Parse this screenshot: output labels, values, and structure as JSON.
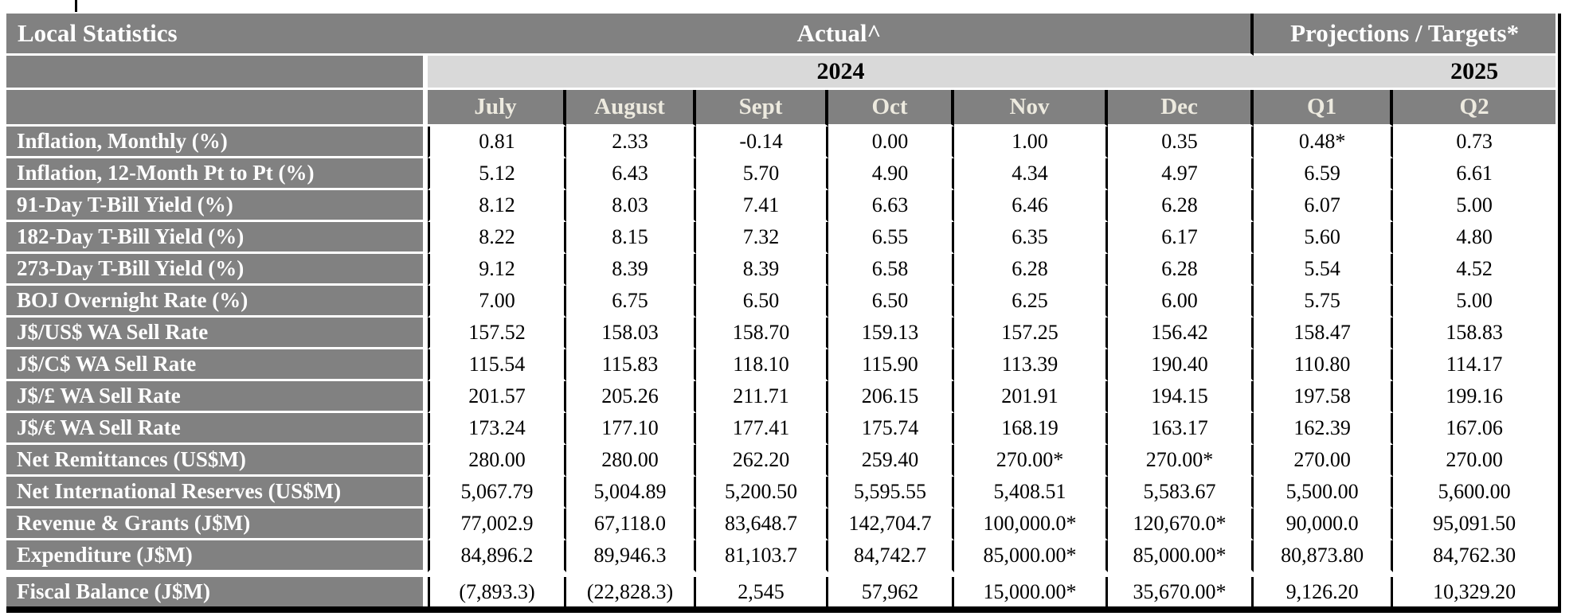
{
  "colors": {
    "gray": "#818181",
    "lightband": "#d9d9d9",
    "monthtext": "#edeadf",
    "headertext": "#ffffff",
    "datatext": "#000000",
    "border": "#000000",
    "bg": "#ffffff"
  },
  "table": {
    "title": "Local Statistics",
    "actual_header": "Actual^",
    "projections_header": "Projections / Targets*",
    "year_left": "2024",
    "year_right": "2025",
    "columns": [
      "July",
      "August",
      "Sept",
      "Oct",
      "Nov",
      "Dec",
      "Q1",
      "Q2"
    ],
    "rows": [
      {
        "label": "Inflation, Monthly (%)",
        "values": [
          "0.81",
          "2.33",
          "-0.14",
          "0.00",
          "1.00",
          "0.35",
          "0.48*",
          "0.73"
        ]
      },
      {
        "label": "Inflation, 12-Month Pt to Pt (%)",
        "values": [
          "5.12",
          "6.43",
          "5.70",
          "4.90",
          "4.34",
          "4.97",
          "6.59",
          "6.61"
        ]
      },
      {
        "label": "91-Day T-Bill Yield (%)",
        "values": [
          "8.12",
          "8.03",
          "7.41",
          "6.63",
          "6.46",
          "6.28",
          "6.07",
          "5.00"
        ]
      },
      {
        "label": "182-Day T-Bill Yield (%)",
        "values": [
          "8.22",
          "8.15",
          "7.32",
          "6.55",
          "6.35",
          "6.17",
          "5.60",
          "4.80"
        ]
      },
      {
        "label": "273-Day T-Bill Yield (%)",
        "values": [
          "9.12",
          "8.39",
          "8.39",
          "6.58",
          "6.28",
          "6.28",
          "5.54",
          "4.52"
        ]
      },
      {
        "label": "BOJ Overnight Rate (%)",
        "values": [
          "7.00",
          "6.75",
          "6.50",
          "6.50",
          "6.25",
          "6.00",
          "5.75",
          "5.00"
        ]
      },
      {
        "label": "J$/US$ WA Sell Rate",
        "values": [
          "157.52",
          "158.03",
          "158.70",
          "159.13",
          "157.25",
          "156.42",
          "158.47",
          "158.83"
        ]
      },
      {
        "label": "J$/C$ WA Sell Rate",
        "values": [
          "115.54",
          "115.83",
          "118.10",
          "115.90",
          "113.39",
          "190.40",
          "110.80",
          "114.17"
        ]
      },
      {
        "label": "J$/£ WA Sell Rate",
        "values": [
          "201.57",
          "205.26",
          "211.71",
          "206.15",
          "201.91",
          "194.15",
          "197.58",
          "199.16"
        ]
      },
      {
        "label": "J$/€ WA Sell Rate",
        "values": [
          "173.24",
          "177.10",
          "177.41",
          "175.74",
          "168.19",
          "163.17",
          "162.39",
          "167.06"
        ]
      },
      {
        "label": "Net Remittances (US$M)",
        "values": [
          "280.00",
          "280.00",
          "262.20",
          "259.40",
          "270.00*",
          "270.00*",
          "270.00",
          "270.00"
        ]
      },
      {
        "label": "Net International Reserves (US$M)",
        "values": [
          "5,067.79",
          "5,004.89",
          "5,200.50",
          "5,595.55",
          "5,408.51",
          "5,583.67",
          "5,500.00",
          "5,600.00"
        ]
      },
      {
        "label": "Revenue & Grants (J$M)",
        "values": [
          "77,002.9",
          "67,118.0",
          "83,648.7",
          "142,704.7",
          "100,000.0*",
          "120,670.0*",
          "90,000.0",
          "95,091.50"
        ]
      },
      {
        "label": "Expenditure (J$M)",
        "values": [
          "84,896.2",
          "89,946.3",
          "81,103.7",
          "84,742.7",
          "85,000.00*",
          "85,000.00*",
          "80,873.80",
          "84,762.30"
        ]
      },
      {
        "label": "Fiscal Balance (J$M)",
        "values": [
          "(7,893.3)",
          "(22,828.3)",
          "2,545",
          "57,962",
          "15,000.00*",
          "35,670.00*",
          "9,126.20",
          "10,329.20"
        ]
      }
    ]
  }
}
